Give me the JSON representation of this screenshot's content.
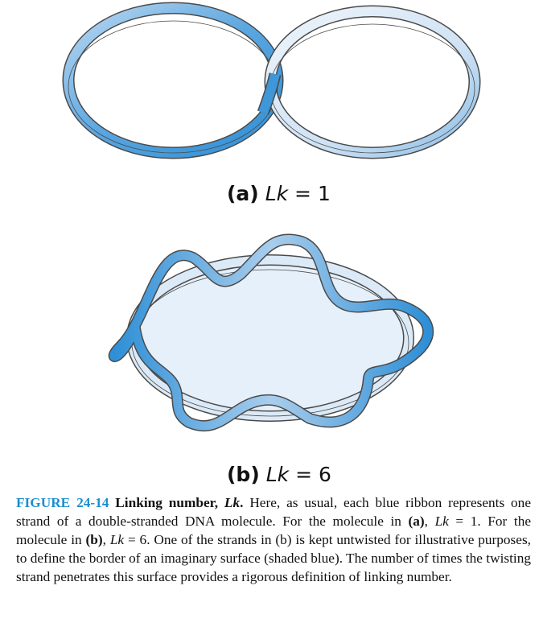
{
  "panels": [
    {
      "letter": "(a)",
      "lk_var": "Lk",
      "equals": "=",
      "value": "1"
    },
    {
      "letter": "(b)",
      "lk_var": "Lk",
      "equals": "=",
      "value": "6"
    }
  ],
  "caption": {
    "figure_number": "FIGURE 24-14",
    "title_prefix": "Linking number, ",
    "title_var": "Lk",
    "title_suffix": ".",
    "s1": " Here, as usual, each blue ribbon represents one strand of a double-stranded DNA molecule. For the molecule in ",
    "a_ref": "(a)",
    "s2_sep": ", ",
    "lk1_var": "Lk",
    "s2": " = 1. For the molecule in ",
    "b_ref": "(b)",
    "s3_sep": ", ",
    "lk2_var": "Lk",
    "s3": " = 6. One of the strands in (b) is kept untwisted for illustrative purposes, to define the border of an imaginary surface (shaded blue). The number of times the twisting strand penetrates this surface provides a rigorous definition of linking number."
  },
  "colors": {
    "ribbon_dark": "#2e8fd6",
    "ribbon_mid": "#8bbde6",
    "ribbon_light": "#e8f1fa",
    "ribbon_edge": "#4a4a4a",
    "surface_fill": "#e6f0fa",
    "caption_accent": "#1a8fd0"
  }
}
